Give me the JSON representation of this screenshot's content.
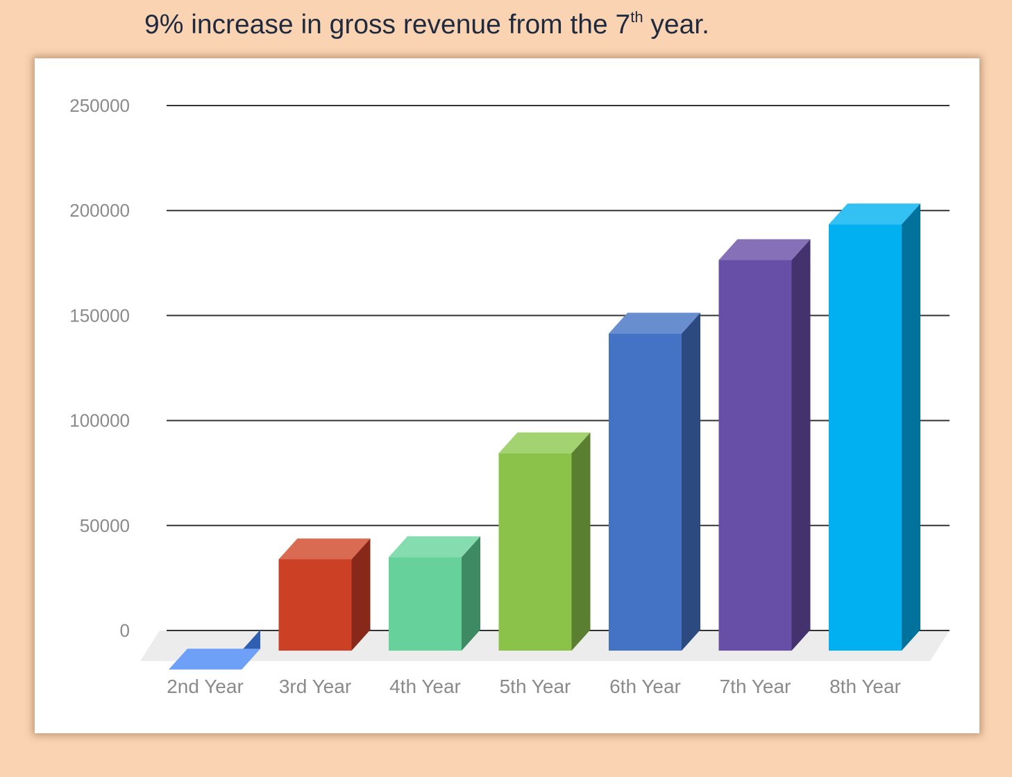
{
  "headline": {
    "main": "9% increase in gross revenue from the 7",
    "sup": "th",
    "tail": " year."
  },
  "chart_data": {
    "type": "bar",
    "categories": [
      "2nd Year",
      "3rd Year",
      "4th Year",
      "5th Year",
      "6th Year",
      "7th Year",
      "8th Year"
    ],
    "values": [
      -9000,
      43500,
      44500,
      94000,
      151000,
      186000,
      203000
    ],
    "ylim": [
      0,
      250000
    ],
    "yticks": [
      0,
      50000,
      100000,
      150000,
      200000,
      250000
    ],
    "grid": true,
    "legend": "none",
    "colors": [
      {
        "front": "#4285f4",
        "top": "#6fa0f7",
        "side": "#2f5fb0"
      },
      {
        "front": "#cc4125",
        "top": "#d86b52",
        "side": "#87281a"
      },
      {
        "front": "#66d19a",
        "top": "#85dcaf",
        "side": "#3e8a63"
      },
      {
        "front": "#8bc34a",
        "top": "#a3d270",
        "side": "#5a7f30"
      },
      {
        "front": "#4472c4",
        "top": "#698ed0",
        "side": "#2c4a80"
      },
      {
        "front": "#674ea7",
        "top": "#8671b8",
        "side": "#43326d"
      },
      {
        "front": "#00b0f0",
        "top": "#33c0f3",
        "side": "#00729c"
      }
    ]
  }
}
